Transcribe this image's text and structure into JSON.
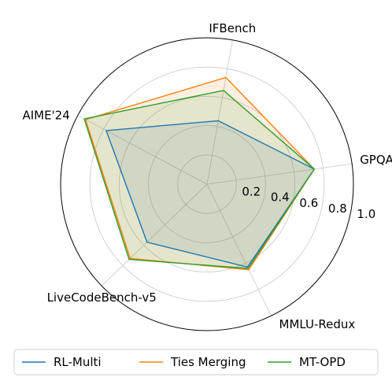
{
  "chart_data": {
    "type": "radar",
    "title": "",
    "axes": [
      "IFBench",
      "GPQA",
      "MMLU-Redux",
      "LiveCodeBench-v5",
      "AIME'24"
    ],
    "radial_ticks": [
      "0.2",
      "0.4",
      "0.6",
      "0.8",
      "1.0"
    ],
    "rlim": [
      0,
      1.0
    ],
    "grid": true,
    "legend_position": "bottom",
    "series": [
      {
        "name": "RL-Multi",
        "color": "#1f77b4",
        "values": [
          0.44,
          0.74,
          0.63,
          0.57,
          0.78
        ]
      },
      {
        "name": "Ties Merging",
        "color": "#ff7f0e",
        "values": [
          0.74,
          0.74,
          0.65,
          0.73,
          0.94
        ]
      },
      {
        "name": "MT-OPD",
        "color": "#2ca02c",
        "values": [
          0.65,
          0.74,
          0.64,
          0.74,
          0.95
        ]
      }
    ]
  }
}
